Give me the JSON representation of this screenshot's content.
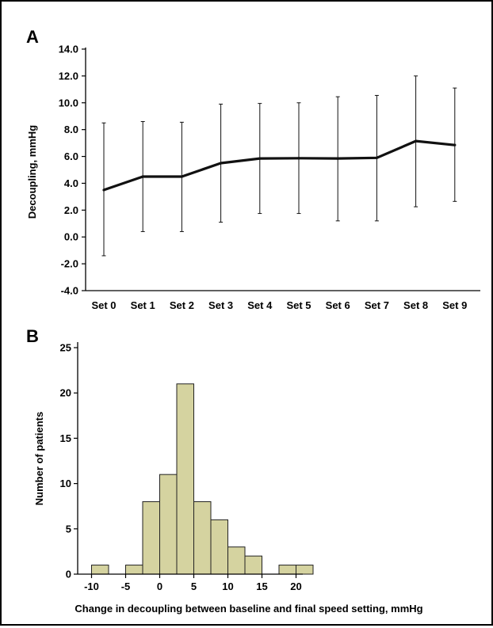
{
  "colors": {
    "line": "#111111",
    "hist_fill": "#d5d3a0",
    "hist_stroke": "#222222",
    "border": "#000000"
  },
  "panels": {
    "a_label": "A",
    "b_label": "B"
  },
  "chart_data": [
    {
      "type": "line",
      "panel": "A",
      "ylabel": "Decoupling, mmHg",
      "xlabel": "",
      "categories": [
        "Set 0",
        "Set 1",
        "Set 2",
        "Set 3",
        "Set 4",
        "Set 5",
        "Set 6",
        "Set 7",
        "Set 8",
        "Set 9"
      ],
      "values": [
        3.5,
        4.5,
        4.5,
        5.5,
        5.85,
        5.87,
        5.85,
        5.9,
        7.15,
        6.85
      ],
      "error_low": [
        -1.4,
        0.4,
        0.4,
        1.1,
        1.75,
        1.75,
        1.2,
        1.2,
        2.25,
        2.65
      ],
      "error_high": [
        8.5,
        8.6,
        8.55,
        9.9,
        9.95,
        10.0,
        10.45,
        10.55,
        12.0,
        11.1
      ],
      "ylim": [
        -4.0,
        14.0
      ],
      "yticks": [
        "-4.0",
        "-2.0",
        "0.0",
        "2.0",
        "4.0",
        "6.0",
        "8.0",
        "10.0",
        "12.0",
        "14.0"
      ],
      "grid": false
    },
    {
      "type": "bar",
      "subtype": "histogram",
      "panel": "B",
      "ylabel": "Number of patients",
      "xlabel": "Change in decoupling between baseline and final speed setting, mmHg",
      "bin_width": 2.5,
      "bin_starts": [
        -12.5,
        -10,
        -7.5,
        -5,
        -2.5,
        0,
        2.5,
        5,
        7.5,
        10,
        12.5,
        15,
        17.5,
        20
      ],
      "counts": [
        0,
        1,
        0,
        1,
        8,
        11,
        21,
        8,
        6,
        3,
        2,
        0,
        1,
        1
      ],
      "xlim": [
        -12.5,
        22.5
      ],
      "ylim": [
        0,
        25
      ],
      "xticks": [
        "-10",
        "-5",
        "0",
        "5",
        "10",
        "15",
        "20"
      ],
      "yticks": [
        "0",
        "5",
        "10",
        "15",
        "20",
        "25"
      ],
      "grid": false
    }
  ]
}
